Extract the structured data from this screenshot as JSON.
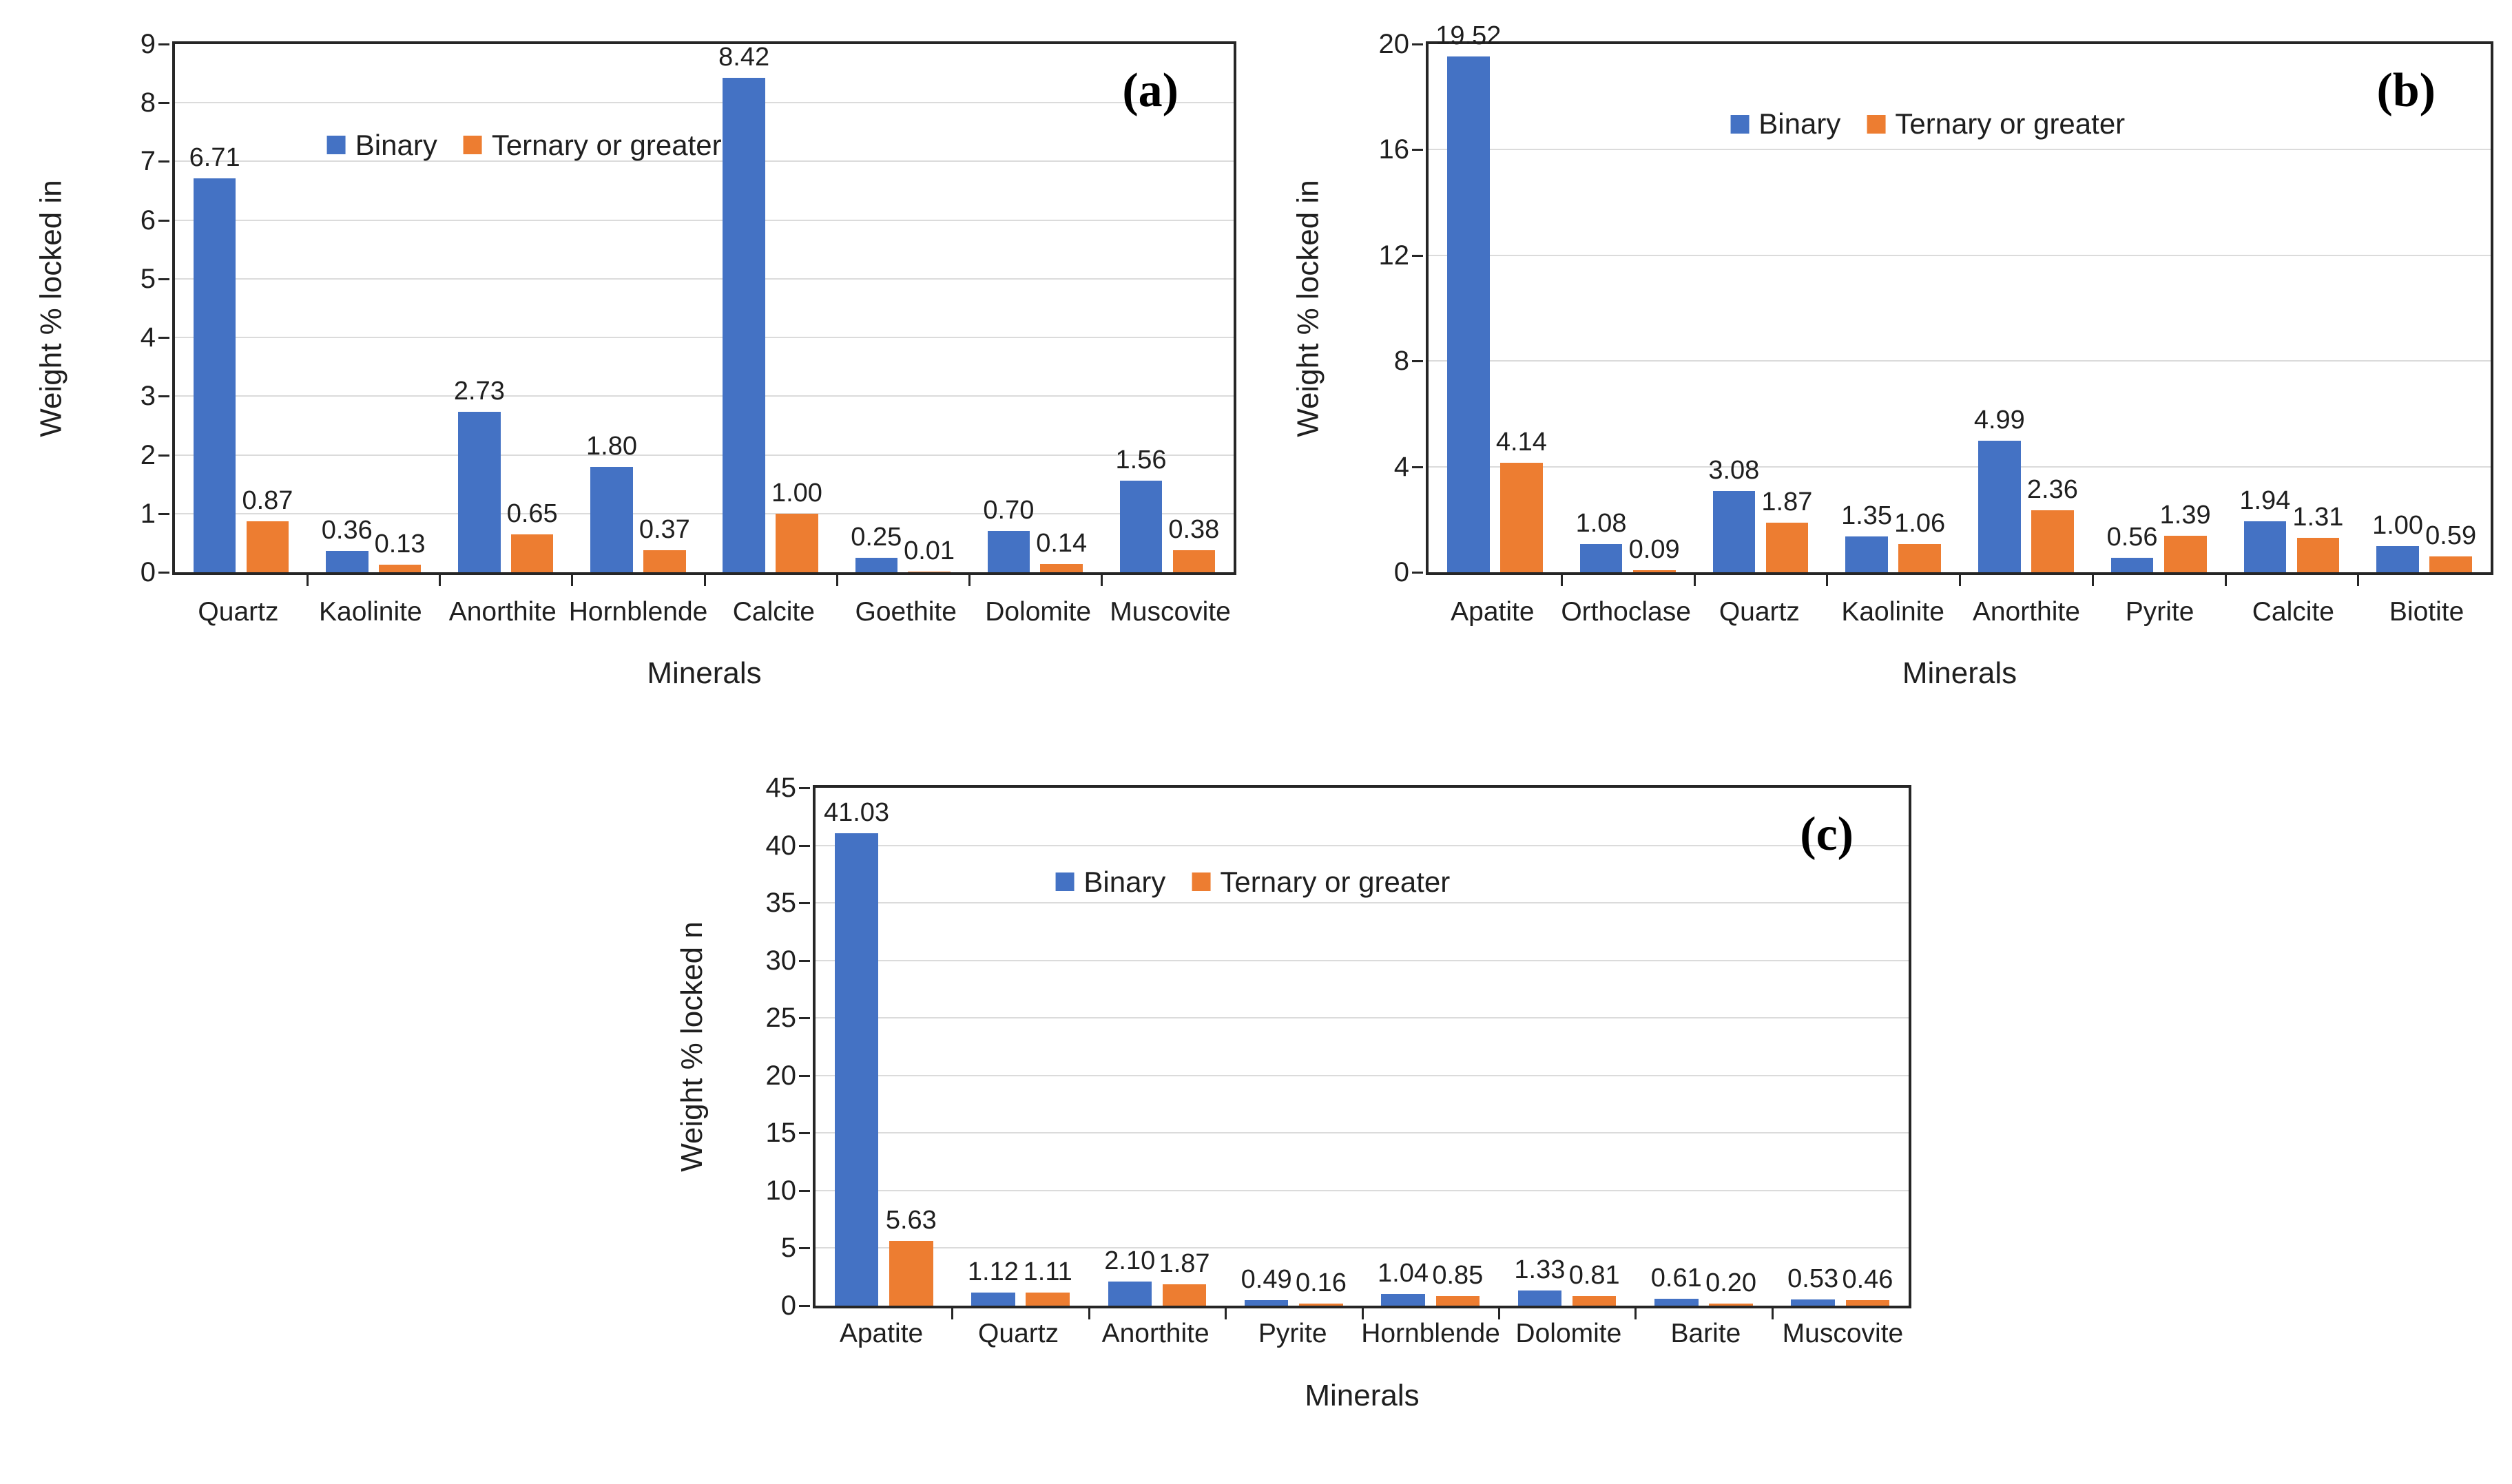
{
  "figure": {
    "legend": {
      "binary": "Binary",
      "ternary": "Ternary or greater"
    },
    "colors": {
      "binary": "#4472C4",
      "ternary": "#ED7D31",
      "axis": "#262626",
      "grid": "#dbdbdb"
    }
  },
  "chart_data": [
    {
      "id": "a",
      "type": "bar",
      "panel_label": "(a)",
      "xlabel": "Minerals",
      "ylabel": "Weight % locked in",
      "ylim": [
        0,
        9
      ],
      "yticks": [
        0,
        1,
        2,
        3,
        4,
        5,
        6,
        7,
        8,
        9
      ],
      "grid": true,
      "legend_position": "inside-top",
      "categories": [
        "Quartz",
        "Kaolinite",
        "Anorthite",
        "Hornblende",
        "Calcite",
        "Goethite",
        "Dolomite",
        "Muscovite"
      ],
      "series": [
        {
          "name": "Binary",
          "values": [
            6.71,
            0.36,
            2.73,
            1.8,
            8.42,
            0.25,
            0.7,
            1.56
          ]
        },
        {
          "name": "Ternary or greater",
          "values": [
            0.87,
            0.13,
            0.65,
            0.37,
            1.0,
            0.01,
            0.14,
            0.38
          ]
        }
      ]
    },
    {
      "id": "b",
      "type": "bar",
      "panel_label": "(b)",
      "xlabel": "Minerals",
      "ylabel": "Weight % locked in",
      "ylim": [
        0,
        20
      ],
      "yticks": [
        0,
        4,
        8,
        12,
        16,
        20
      ],
      "grid": true,
      "legend_position": "inside-top",
      "categories": [
        "Apatite",
        "Orthoclase",
        "Quartz",
        "Kaolinite",
        "Anorthite",
        "Pyrite",
        "Calcite",
        "Biotite"
      ],
      "series": [
        {
          "name": "Binary",
          "values": [
            19.52,
            1.08,
            3.08,
            1.35,
            4.99,
            0.56,
            1.94,
            1.0
          ]
        },
        {
          "name": "Ternary or greater",
          "values": [
            4.14,
            0.09,
            1.87,
            1.06,
            2.36,
            1.39,
            1.31,
            0.59
          ]
        }
      ]
    },
    {
      "id": "c",
      "type": "bar",
      "panel_label": "(c)",
      "xlabel": "Minerals",
      "ylabel": "Weight % locked n",
      "ylim": [
        0,
        45
      ],
      "yticks": [
        0,
        5,
        10,
        15,
        20,
        25,
        30,
        35,
        40,
        45
      ],
      "grid": true,
      "legend_position": "inside-top",
      "categories": [
        "Apatite",
        "Quartz",
        "Anorthite",
        "Pyrite",
        "Hornblende",
        "Dolomite",
        "Barite",
        "Muscovite"
      ],
      "series": [
        {
          "name": "Binary",
          "values": [
            41.03,
            1.12,
            2.1,
            0.49,
            1.04,
            1.33,
            0.61,
            0.53
          ]
        },
        {
          "name": "Ternary or greater",
          "values": [
            5.63,
            1.11,
            1.87,
            0.16,
            0.85,
            0.81,
            0.2,
            0.46
          ]
        }
      ]
    }
  ]
}
